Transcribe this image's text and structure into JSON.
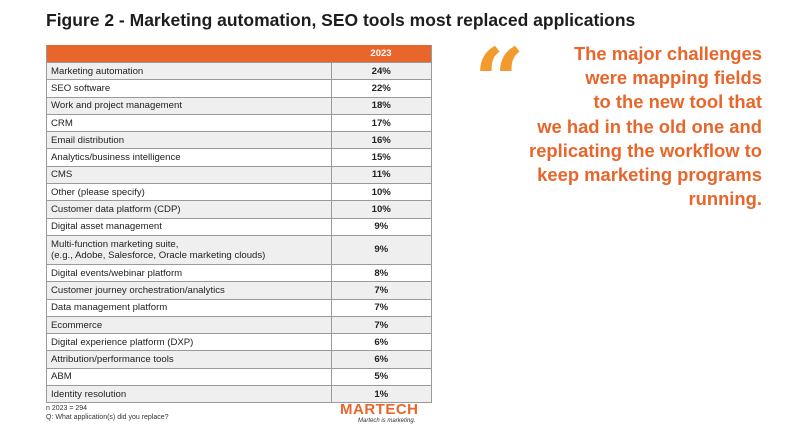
{
  "title": "Figure 2 - Marketing automation, SEO tools most replaced applications",
  "table": {
    "header_name": "",
    "header_year": "2023",
    "rows": [
      {
        "name": "Marketing automation",
        "value": "24%"
      },
      {
        "name": "SEO software",
        "value": "22%"
      },
      {
        "name": "Work and project management",
        "value": "18%"
      },
      {
        "name": "CRM",
        "value": "17%"
      },
      {
        "name": "Email distribution",
        "value": "16%"
      },
      {
        "name": "Analytics/business intelligence",
        "value": "15%"
      },
      {
        "name": "CMS",
        "value": "11%"
      },
      {
        "name": "Other (please specify)",
        "value": "10%"
      },
      {
        "name": "Customer data platform (CDP)",
        "value": "10%"
      },
      {
        "name": "Digital asset management",
        "value": "9%"
      },
      {
        "name": "Multi-function marketing suite,",
        "name2": "(e.g., Adobe, Salesforce, Oracle marketing clouds)",
        "value": "9%"
      },
      {
        "name": "Digital events/webinar platform",
        "value": "8%"
      },
      {
        "name": "Customer journey orchestration/analytics",
        "value": "7%"
      },
      {
        "name": "Data management platform",
        "value": "7%"
      },
      {
        "name": "Ecommerce",
        "value": "7%"
      },
      {
        "name": "Digital experience platform (DXP)",
        "value": "6%"
      },
      {
        "name": "Attribution/performance tools",
        "value": "6%"
      },
      {
        "name": "ABM",
        "value": "5%"
      },
      {
        "name": "Identity resolution",
        "value": "1%"
      }
    ]
  },
  "footnote": {
    "line1": "n 2023 = 294",
    "line2": "Q: What application(s) did you replace?"
  },
  "logo": {
    "word": "MARTECH",
    "tagline": "Martech is marketing."
  },
  "quote": {
    "mark": "“",
    "lines": [
      "The major challenges",
      "were mapping fields",
      "to the new tool that",
      "we had in the old one and",
      "replicating the workflow to",
      "keep marketing programs",
      "running."
    ]
  },
  "colors": {
    "accent": "#e8662b",
    "quote_mark": "#f29a2e"
  }
}
